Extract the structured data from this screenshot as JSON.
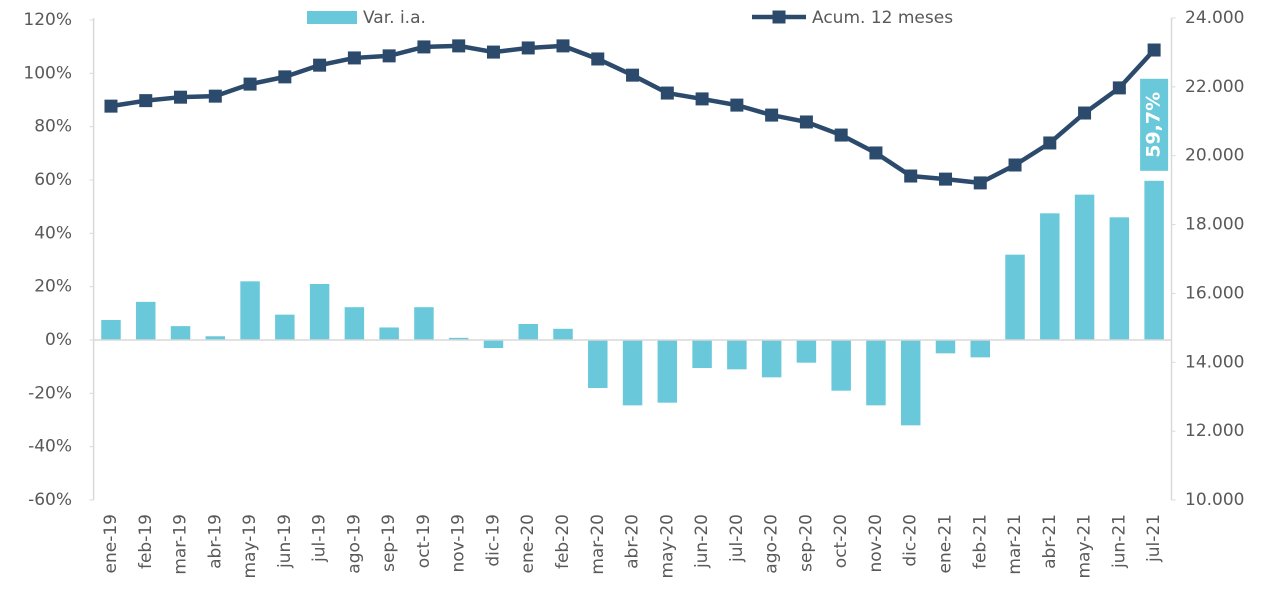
{
  "chart_data": {
    "type": "bar_line",
    "categories": [
      "ene-19",
      "feb-19",
      "mar-19",
      "abr-19",
      "may-19",
      "jun-19",
      "jul-19",
      "ago-19",
      "sep-19",
      "oct-19",
      "nov-19",
      "dic-19",
      "ene-20",
      "feb-20",
      "mar-20",
      "abr-20",
      "may-20",
      "jun-20",
      "jul-20",
      "ago-20",
      "sep-20",
      "oct-20",
      "nov-20",
      "dic-20",
      "ene-21",
      "feb-21",
      "mar-21",
      "abr-21",
      "may-21",
      "jun-21",
      "jul-21"
    ],
    "series": [
      {
        "name": "Var. i.a.",
        "color": "#69c8d9",
        "type": "bar",
        "values": [
          7.5,
          14.3,
          5.2,
          1.4,
          22,
          9.5,
          21,
          12.3,
          4.7,
          12.3,
          0.8,
          -3,
          6,
          4.2,
          -18,
          -24.5,
          -23.5,
          -10.5,
          -11,
          -14,
          -8.5,
          -19,
          -24.5,
          -32,
          -5,
          -6.5,
          32,
          47.5,
          54.5,
          46,
          59.7
        ],
        "value_labels": [
          null,
          null,
          null,
          null,
          null,
          null,
          null,
          null,
          null,
          null,
          null,
          null,
          null,
          null,
          null,
          null,
          null,
          null,
          null,
          null,
          null,
          null,
          null,
          null,
          null,
          null,
          null,
          null,
          null,
          null,
          "59,7%"
        ]
      },
      {
        "name": "Acum. 12 meses",
        "color": "#2c4a6b",
        "type": "line",
        "axis": "y2",
        "values": [
          21440,
          21600,
          21700,
          21730,
          22080,
          22290,
          22630,
          22840,
          22900,
          23160,
          23190,
          23010,
          23130,
          23190,
          22810,
          22340,
          21820,
          21650,
          21470,
          21180,
          20980,
          20600,
          20080,
          19410,
          19320,
          19210,
          19730,
          20370,
          21240,
          21970,
          23070
        ]
      }
    ],
    "ylim": [
      -60,
      120
    ],
    "yticks": [
      {
        "value": -60,
        "label": "-60%"
      },
      {
        "value": -40,
        "label": "-40%"
      },
      {
        "value": -20,
        "label": "-20%"
      },
      {
        "value": 0,
        "label": "0%"
      },
      {
        "value": 20,
        "label": "20%"
      },
      {
        "value": 40,
        "label": "40%"
      },
      {
        "value": 60,
        "label": "60%"
      },
      {
        "value": 80,
        "label": "80%"
      },
      {
        "value": 100,
        "label": "100%"
      },
      {
        "value": 120,
        "label": "120%"
      }
    ],
    "y2lim": [
      10000,
      24000
    ],
    "y2ticks": [
      {
        "value": 10000,
        "label": "10.000"
      },
      {
        "value": 12000,
        "label": "12.000"
      },
      {
        "value": 14000,
        "label": "14.000"
      },
      {
        "value": 16000,
        "label": "16.000"
      },
      {
        "value": 18000,
        "label": "18.000"
      },
      {
        "value": 20000,
        "label": "20.000"
      },
      {
        "value": 22000,
        "label": "22.000"
      },
      {
        "value": 24000,
        "label": "24.000"
      }
    ],
    "grid": false
  }
}
